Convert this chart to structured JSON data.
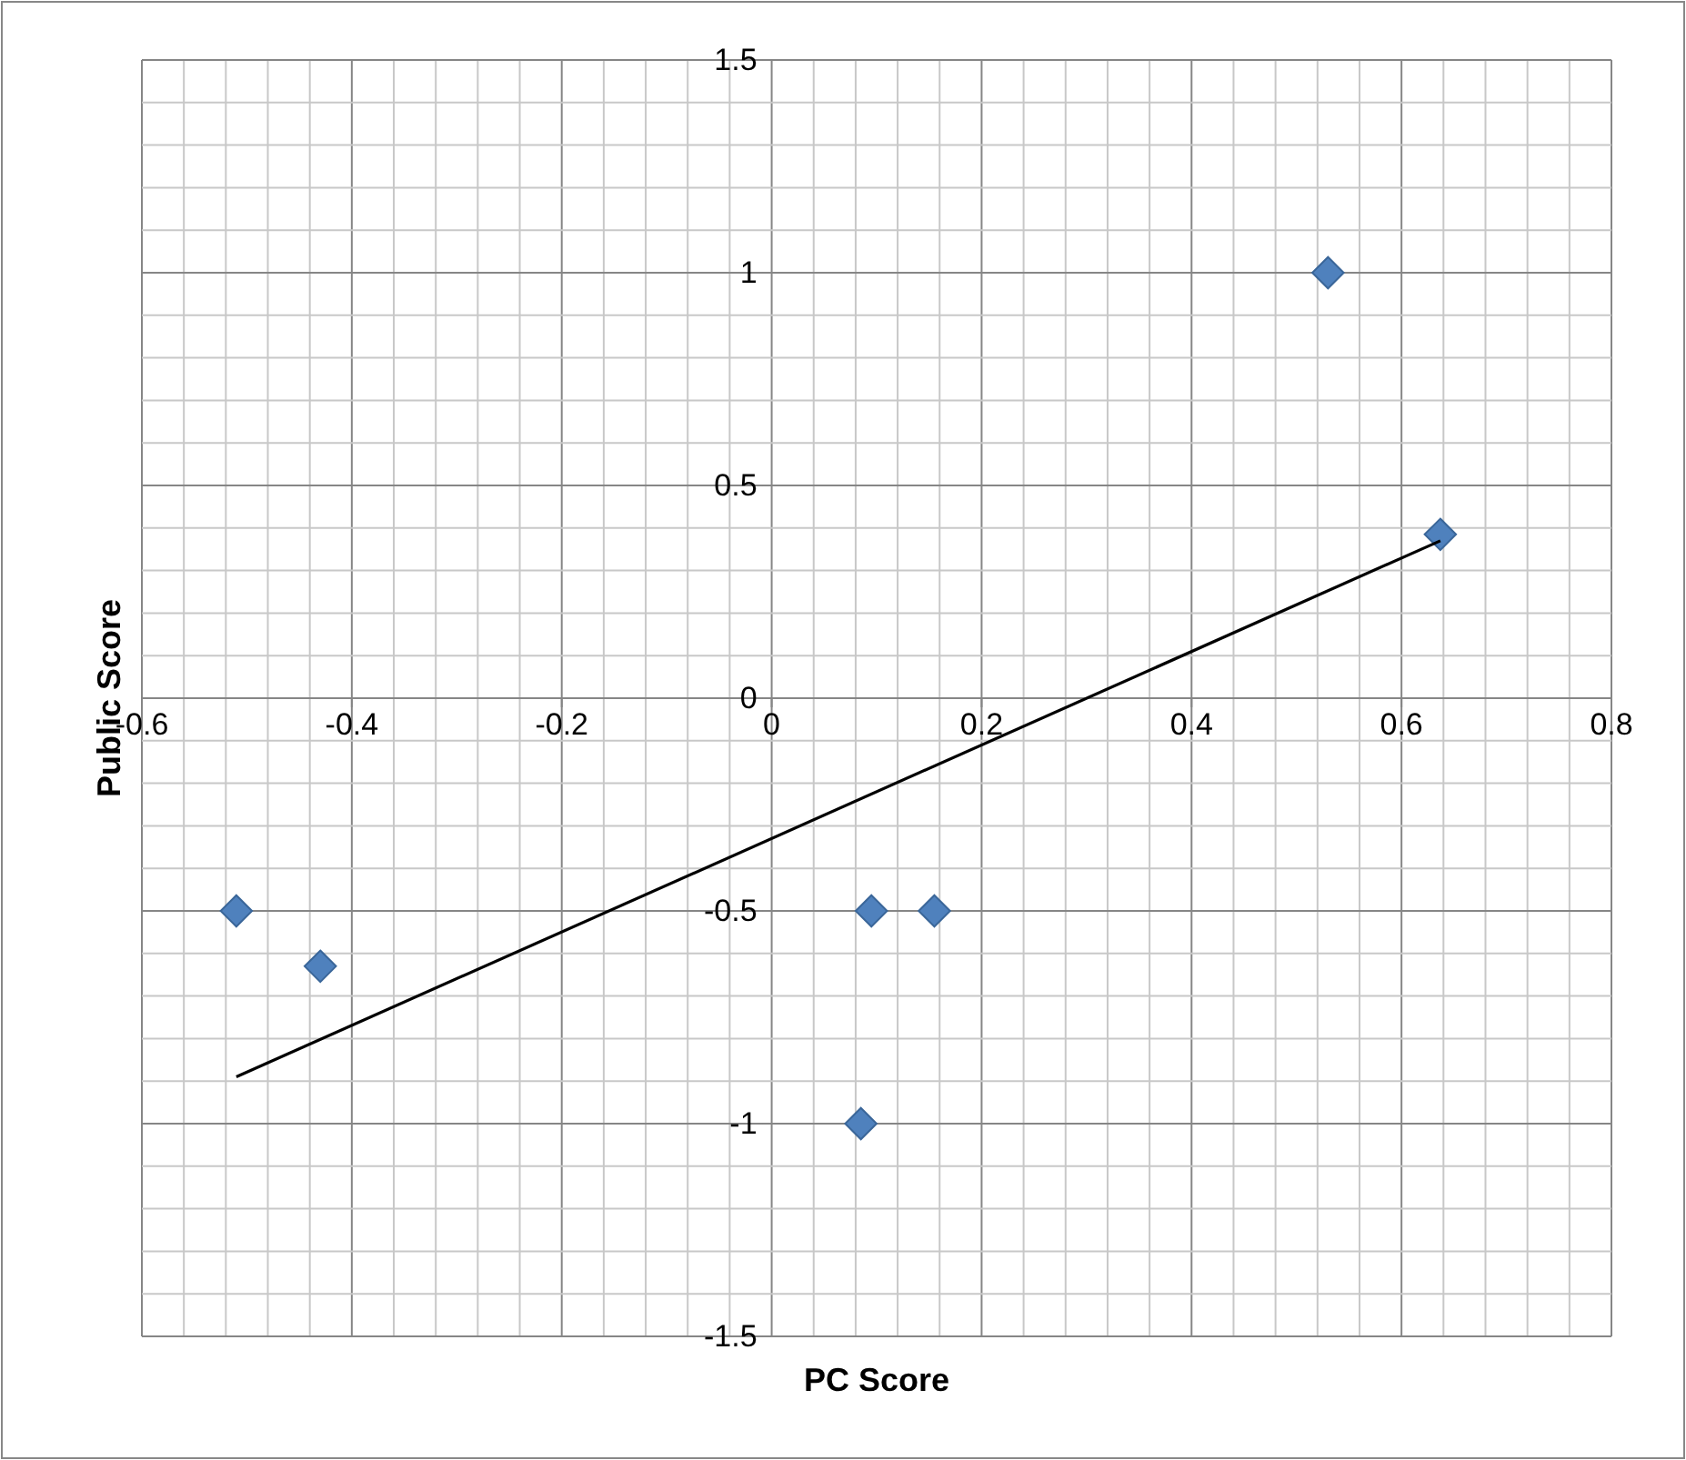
{
  "chart_data": {
    "type": "scatter",
    "xlabel": "PC Score",
    "ylabel": "Public Score",
    "xlim": [
      -0.6,
      0.8
    ],
    "xticks": [
      -0.6,
      -0.4,
      -0.2,
      0,
      0.2,
      0.4,
      0.6,
      0.8
    ],
    "ylim": [
      -1.5,
      1.5
    ],
    "yticks": [
      -1.5,
      -1,
      -0.5,
      0,
      0.5,
      1,
      1.5
    ],
    "grid": true,
    "series": [
      {
        "color": "#4f81bd",
        "marker": "diamond",
        "x": [
          -0.51,
          -0.43,
          0.095,
          0.155,
          0.085,
          0.53,
          0.637
        ],
        "values": [
          -0.5,
          -0.63,
          -0.5,
          -0.5,
          -1,
          1,
          0.385
        ]
      },
      {
        "type": "line",
        "color": "#000000",
        "marker": "none",
        "line_style": "solid",
        "x": [
          -0.51,
          0.637
        ],
        "values": [
          -0.89,
          0.37
        ]
      }
    ]
  }
}
